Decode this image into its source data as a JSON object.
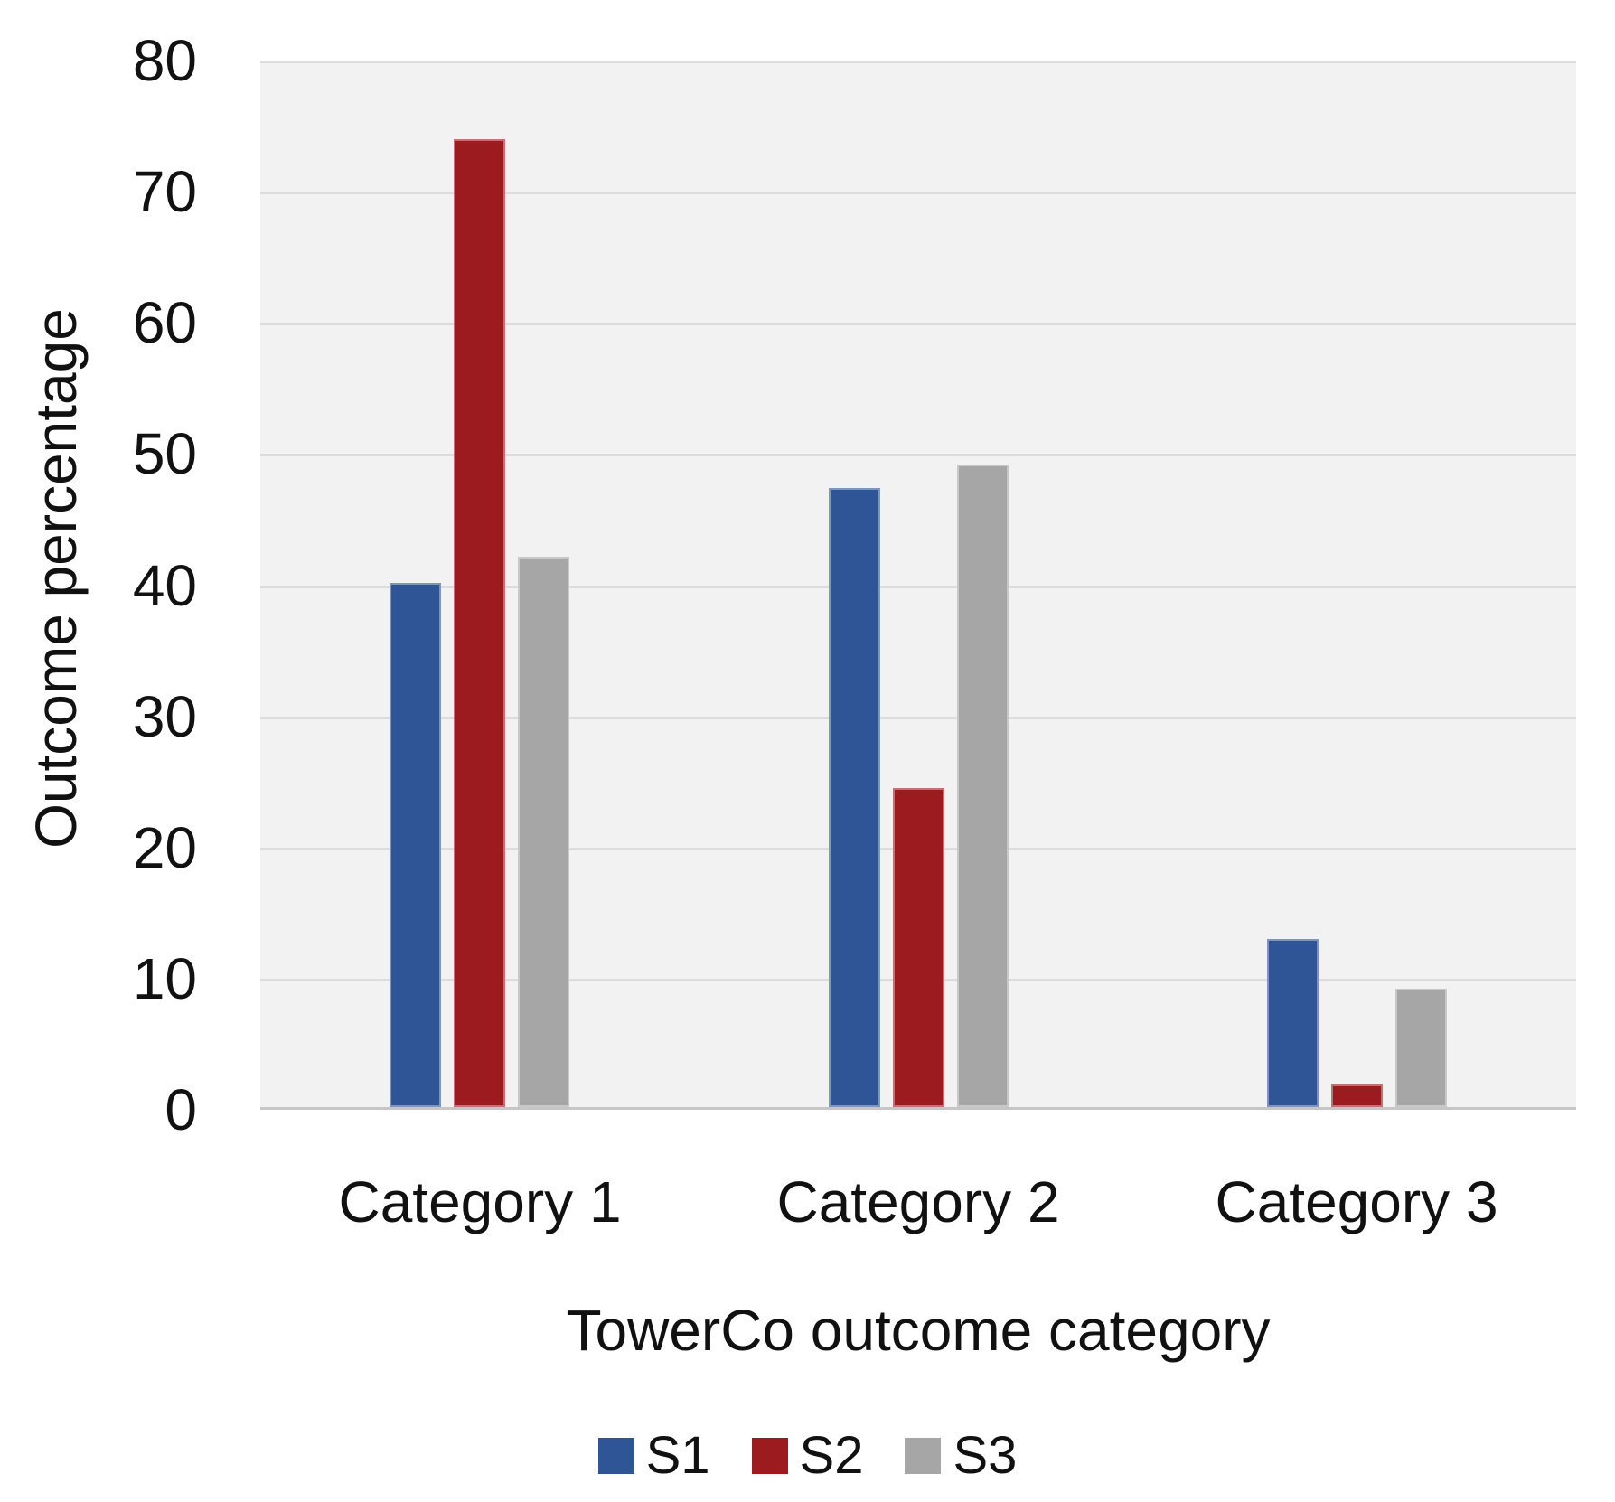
{
  "chart_data": {
    "type": "bar",
    "title": "",
    "xlabel": "TowerCo outcome category",
    "ylabel": "Outcome percentage",
    "categories": [
      "Category 1",
      "Category 2",
      "Category 3"
    ],
    "series": [
      {
        "name": "S1",
        "color": "#2F5597",
        "values": [
          40,
          47.2,
          12.8
        ]
      },
      {
        "name": "S2",
        "color": "#9C1B1E",
        "values": [
          73.8,
          24.3,
          1.7
        ]
      },
      {
        "name": "S3",
        "color": "#A6A6A6",
        "values": [
          42,
          49,
          9
        ]
      }
    ],
    "ylim": [
      0,
      80
    ],
    "yticks": [
      80,
      70,
      60,
      50,
      40,
      30,
      20,
      10,
      0
    ],
    "grid": true,
    "legend": {
      "position": "bottom"
    },
    "colors": {
      "plot_background": "#F2F2F2",
      "gridline": "#DCDCDC",
      "axis_line": "#C6C6C6",
      "text": "#111111"
    }
  }
}
